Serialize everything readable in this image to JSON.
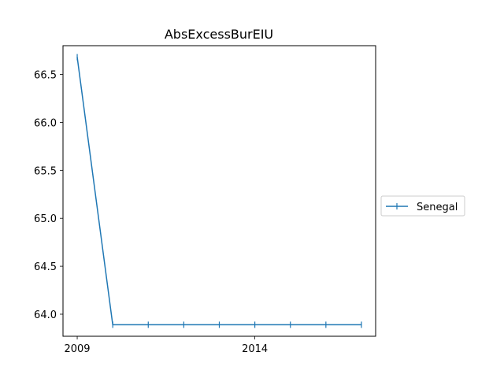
{
  "chart_data": {
    "type": "line",
    "title": "AbsExcessBurEIU",
    "xlabel": "",
    "ylabel": "",
    "x": [
      2009,
      2010,
      2011,
      2012,
      2013,
      2014,
      2015,
      2016,
      2017
    ],
    "series": [
      {
        "name": "Senegal",
        "color": "#1f77b4",
        "marker": "plus",
        "values": [
          66.68,
          63.89,
          63.89,
          63.89,
          63.89,
          63.89,
          63.89,
          63.89,
          63.89
        ]
      }
    ],
    "xlim": [
      2008.6,
      2017.4
    ],
    "ylim": [
      63.77,
      66.8
    ],
    "xticks": [
      2009,
      2014
    ],
    "xtick_labels": [
      "2009",
      "2014"
    ],
    "yticks": [
      64.0,
      64.5,
      65.0,
      65.5,
      66.0,
      66.5
    ],
    "ytick_labels": [
      "64.0",
      "64.5",
      "65.0",
      "65.5",
      "66.0",
      "66.5"
    ],
    "grid": false,
    "legend_position": "right-outside"
  }
}
